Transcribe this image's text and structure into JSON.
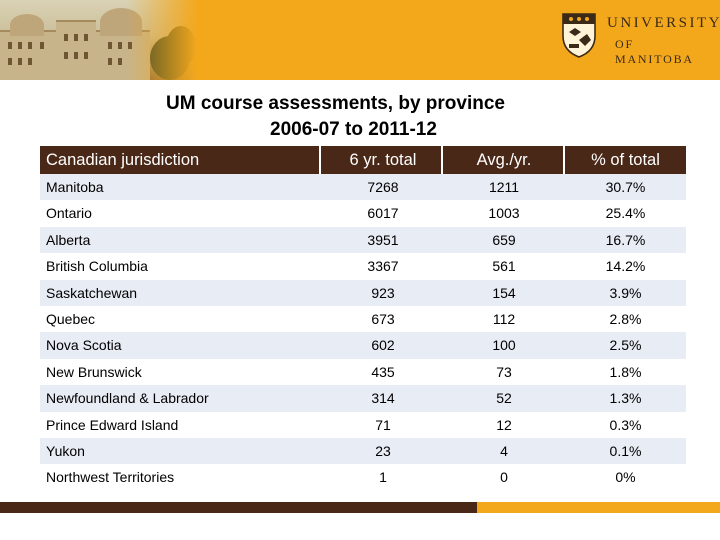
{
  "header": {
    "brand_line1": "UNIVERSITY",
    "brand_line2": "OF MANITOBA",
    "colors": {
      "gold": "#f3a81c",
      "brown": "#4a2817"
    },
    "crest_icon": "university-crest-icon"
  },
  "titles": {
    "main": "UM course assessments, by province",
    "sub": "2006-07 to 2011-12"
  },
  "table": {
    "columns": [
      "Canadian jurisdiction",
      "6 yr. total",
      "Avg./yr.",
      "% of total"
    ],
    "rows": [
      {
        "name": "Manitoba",
        "total": "7268",
        "avg": "1211",
        "pct": "30.7%"
      },
      {
        "name": "Ontario",
        "total": "6017",
        "avg": "1003",
        "pct": "25.4%"
      },
      {
        "name": "Alberta",
        "total": "3951",
        "avg": "659",
        "pct": "16.7%"
      },
      {
        "name": "British Columbia",
        "total": "3367",
        "avg": "561",
        "pct": "14.2%"
      },
      {
        "name": "Saskatchewan",
        "total": "923",
        "avg": "154",
        "pct": "3.9%"
      },
      {
        "name": "Quebec",
        "total": "673",
        "avg": "112",
        "pct": "2.8%"
      },
      {
        "name": "Nova Scotia",
        "total": "602",
        "avg": "100",
        "pct": "2.5%"
      },
      {
        "name": "New Brunswick",
        "total": "435",
        "avg": "73",
        "pct": "1.8%"
      },
      {
        "name": "Newfoundland & Labrador",
        "total": "314",
        "avg": "52",
        "pct": "1.3%"
      },
      {
        "name": "Prince Edward Island",
        "total": "71",
        "avg": "12",
        "pct": "0.3%"
      },
      {
        "name": "Yukon",
        "total": "23",
        "avg": "4",
        "pct": "0.1%"
      },
      {
        "name": "Northwest Territories",
        "total": "1",
        "avg": "0",
        "pct": "0%"
      }
    ],
    "row_colors": {
      "alt": "#e8ecf4",
      "plain": "#ffffff"
    }
  }
}
